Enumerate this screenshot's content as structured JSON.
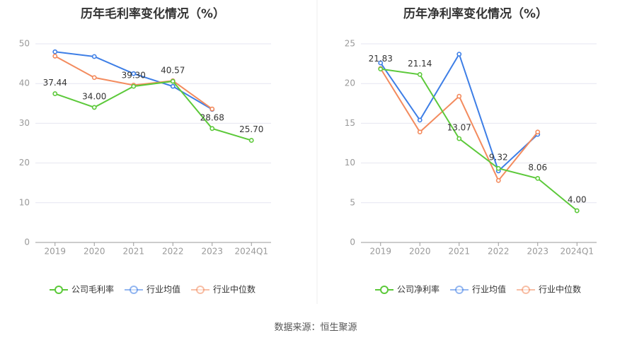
{
  "chart_data": [
    {
      "type": "line",
      "title": "历年毛利率变化情况（%）",
      "categories": [
        "2019",
        "2020",
        "2021",
        "2022",
        "2023",
        "2024Q1"
      ],
      "ylim": [
        0,
        50
      ],
      "yticks": [
        "0",
        "10",
        "20",
        "30",
        "40",
        "50"
      ],
      "grid": true,
      "legend_position": "bottom",
      "series": [
        {
          "name": "公司毛利率",
          "color": "#5cc93a",
          "values": [
            37.44,
            34.0,
            39.3,
            40.57,
            28.68,
            25.7
          ],
          "labels": [
            "37.44",
            "34.00",
            "39.30",
            "40.57",
            "28.68",
            "25.70"
          ]
        },
        {
          "name": "行业均值",
          "color": "#3d7ee6",
          "values": [
            48.0,
            46.8,
            42.5,
            39.3,
            33.5,
            null
          ]
        },
        {
          "name": "行业中位数",
          "color": "#f38b5e",
          "values": [
            46.9,
            41.5,
            39.6,
            40.7,
            33.6,
            null
          ]
        }
      ]
    },
    {
      "type": "line",
      "title": "历年净利率变化情况（%）",
      "categories": [
        "2019",
        "2020",
        "2021",
        "2022",
        "2023",
        "2024Q1"
      ],
      "ylim": [
        0,
        25
      ],
      "yticks": [
        "0",
        "5",
        "10",
        "15",
        "20",
        "25"
      ],
      "grid": true,
      "legend_position": "bottom",
      "series": [
        {
          "name": "公司净利率",
          "color": "#5cc93a",
          "values": [
            21.83,
            21.14,
            13.07,
            9.32,
            8.06,
            4.0
          ],
          "labels": [
            "21.83",
            "21.14",
            "13.07",
            "9.32",
            "8.06",
            "4.00"
          ]
        },
        {
          "name": "行业均值",
          "color": "#3d7ee6",
          "values": [
            22.6,
            15.4,
            23.7,
            9.0,
            13.6,
            null
          ]
        },
        {
          "name": "行业中位数",
          "color": "#f38b5e",
          "values": [
            21.9,
            13.9,
            18.4,
            7.8,
            13.9,
            null
          ]
        }
      ]
    }
  ],
  "footer": {
    "source": "数据来源：恒生聚源"
  }
}
